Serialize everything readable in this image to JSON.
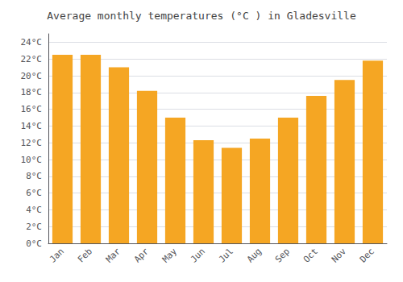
{
  "chart_data": {
    "type": "bar",
    "title": "Average monthly temperatures (°C ) in Gladesville",
    "categories": [
      "Jan",
      "Feb",
      "Mar",
      "Apr",
      "May",
      "Jun",
      "Jul",
      "Aug",
      "Sep",
      "Oct",
      "Nov",
      "Dec"
    ],
    "values": [
      22.5,
      22.5,
      21.0,
      18.2,
      15.0,
      12.3,
      11.4,
      12.5,
      15.0,
      17.6,
      19.5,
      21.8
    ],
    "color": "#F5A623",
    "ylim": [
      0,
      25
    ],
    "yticks": [
      {
        "value": 0,
        "label": "0°C"
      },
      {
        "value": 2,
        "label": "2°C"
      },
      {
        "value": 4,
        "label": "4°C"
      },
      {
        "value": 6,
        "label": "6°C"
      },
      {
        "value": 8,
        "label": "8°C"
      },
      {
        "value": 10,
        "label": "10°C"
      },
      {
        "value": 12,
        "label": "12°C"
      },
      {
        "value": 14,
        "label": "14°C"
      },
      {
        "value": 16,
        "label": "16°C"
      },
      {
        "value": 18,
        "label": "18°C"
      },
      {
        "value": 20,
        "label": "20°C"
      },
      {
        "value": 22,
        "label": "22°C"
      },
      {
        "value": 24,
        "label": "24°C"
      }
    ],
    "grid": true
  }
}
